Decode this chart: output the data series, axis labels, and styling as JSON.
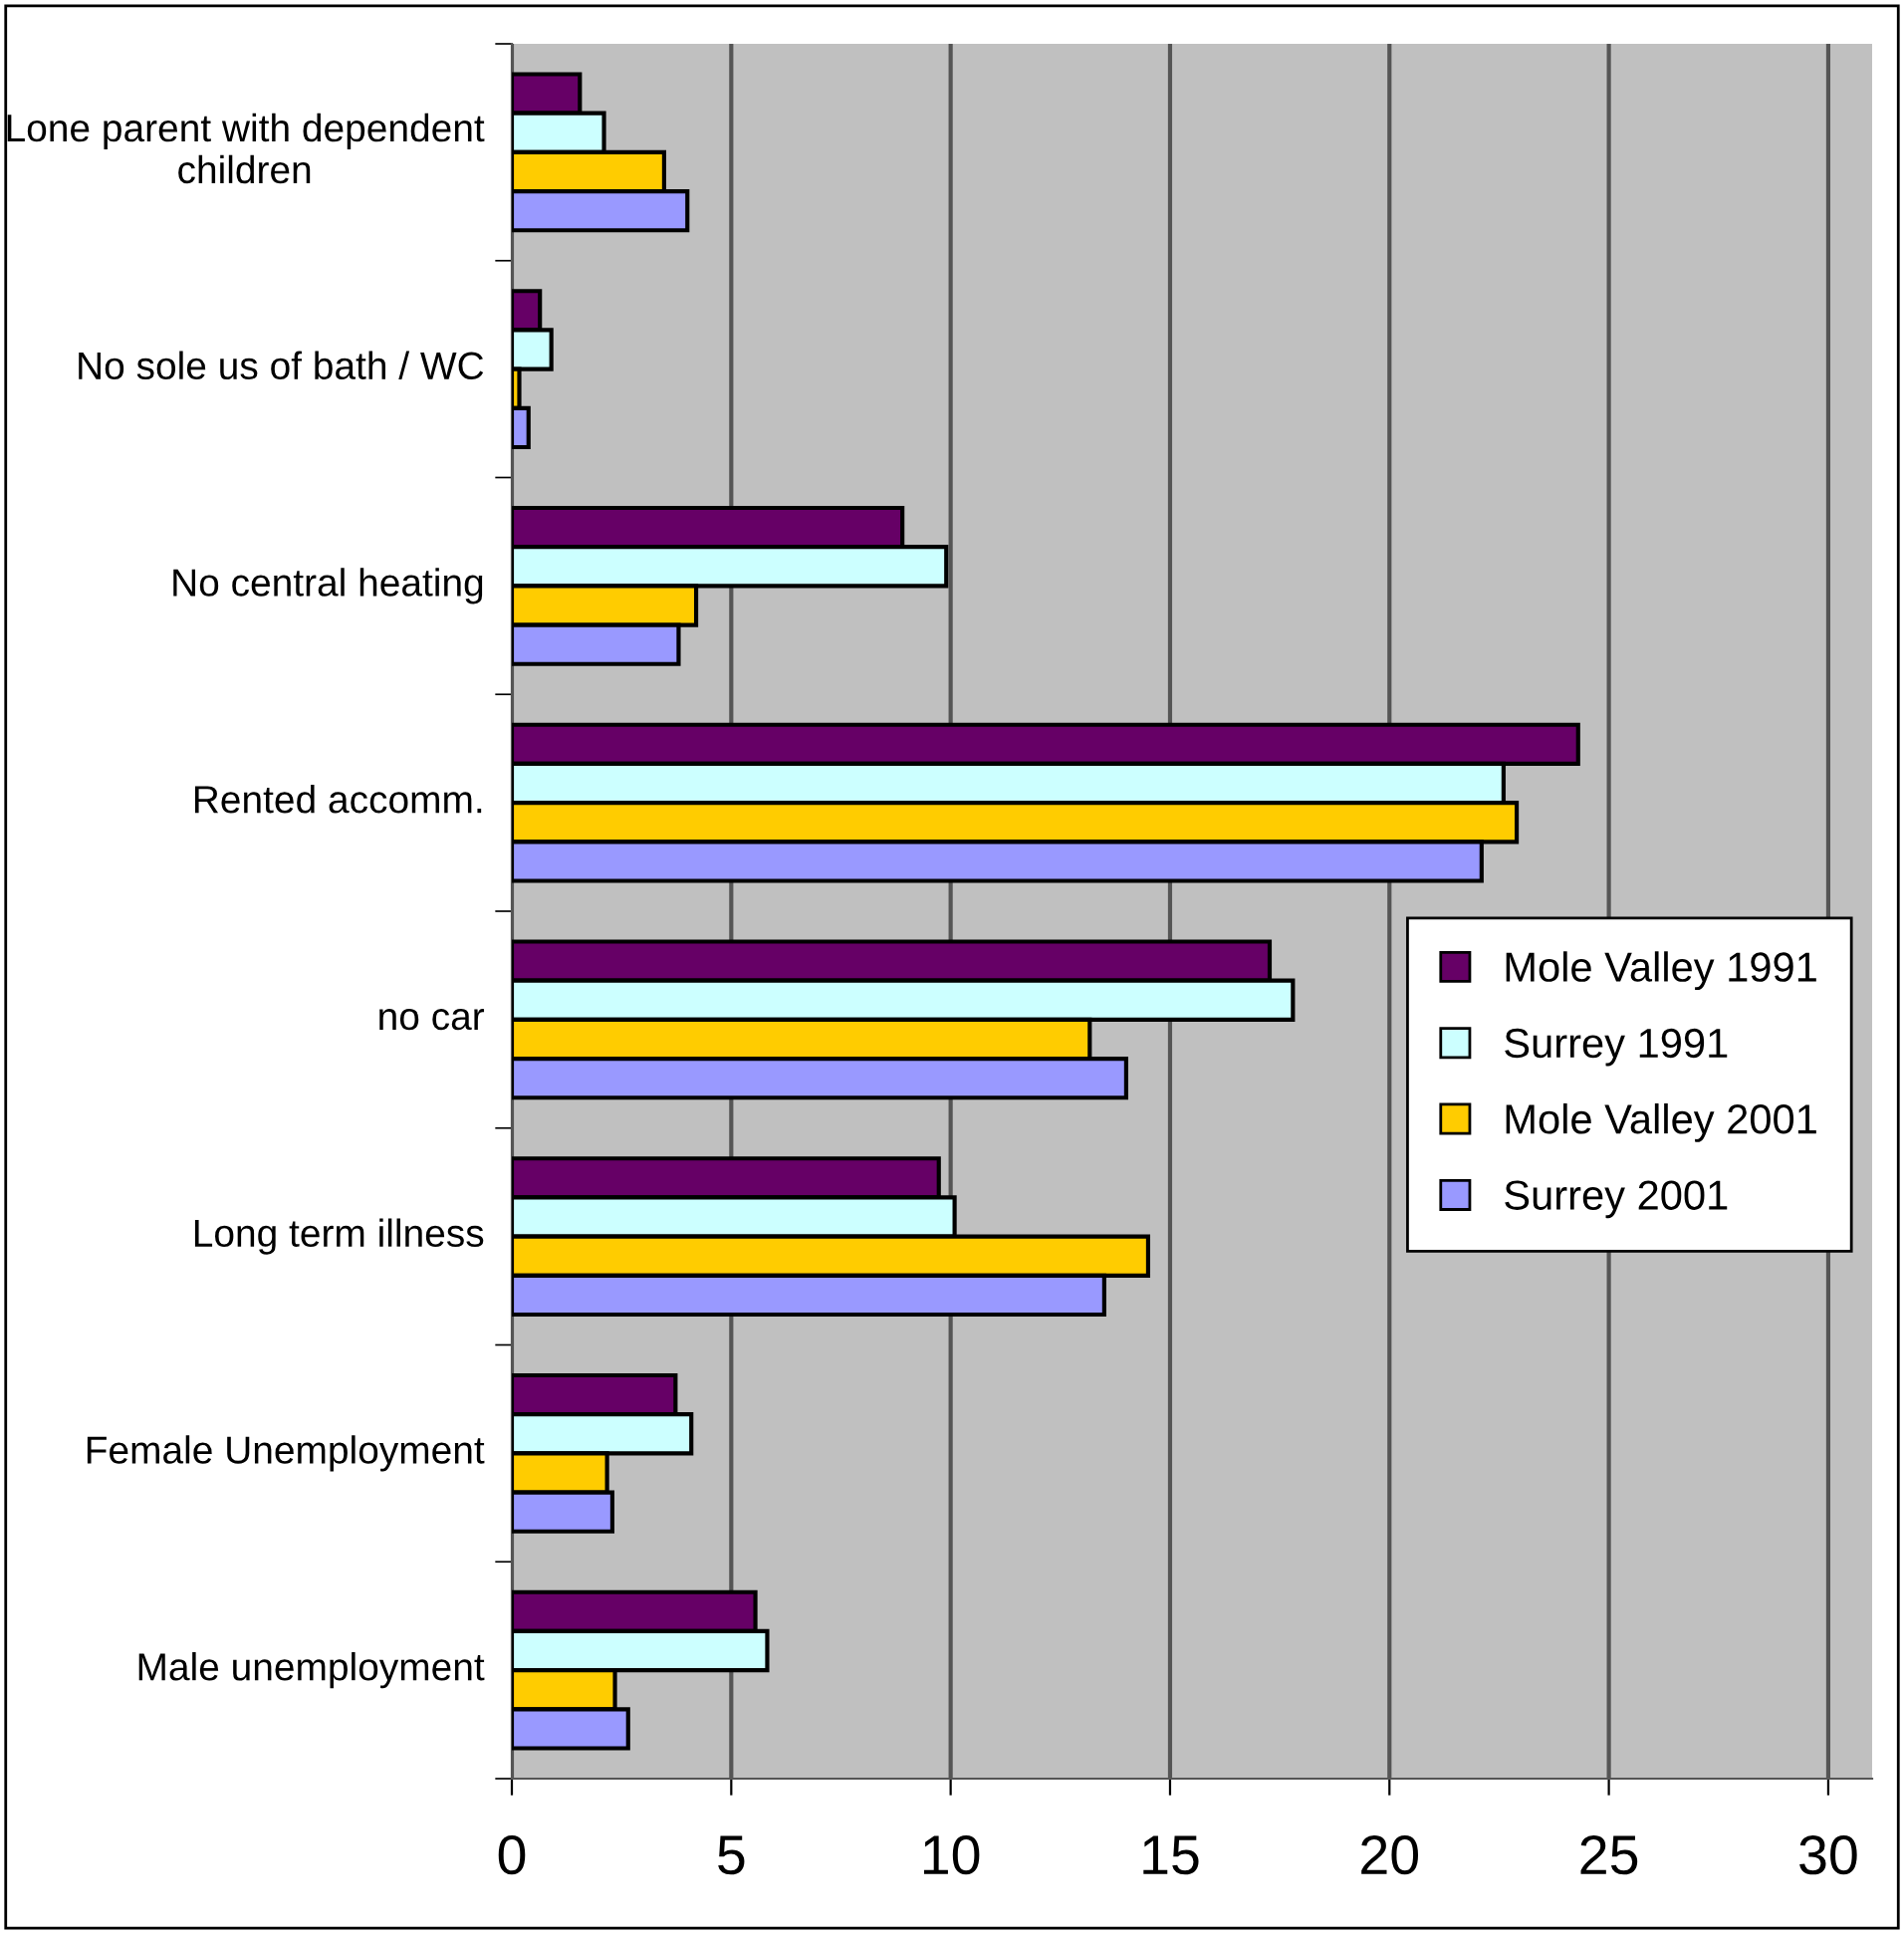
{
  "chart_data": {
    "type": "bar",
    "orientation": "horizontal",
    "categories": [
      "Lone parent with dependent children",
      "No sole us of bath / WC",
      "No central heating",
      "Rented accomm.",
      "no car",
      "Long term illness",
      "Female Unemployment",
      "Male unemployment"
    ],
    "series": [
      {
        "name": "Mole Valley 1991",
        "color": "#660066",
        "values": [
          1.55,
          0.64,
          8.9,
          24.3,
          17.27,
          9.73,
          3.73,
          5.55
        ]
      },
      {
        "name": "Surrey 1991",
        "color": "#ccffff",
        "values": [
          2.1,
          0.9,
          9.9,
          22.6,
          17.8,
          10.09,
          4.09,
          5.82
        ]
      },
      {
        "name": "Mole Valley 2001",
        "color": "#ffcc00",
        "values": [
          3.47,
          0.17,
          4.2,
          22.9,
          13.17,
          14.5,
          2.17,
          2.35
        ]
      },
      {
        "name": "Surrey 2001",
        "color": "#9999ff",
        "values": [
          4.0,
          0.38,
          3.8,
          22.1,
          14.0,
          13.5,
          2.29,
          2.65
        ]
      }
    ],
    "xlim": [
      0,
      31
    ],
    "xticks": [
      0,
      5,
      10,
      15,
      20,
      25,
      30
    ],
    "grid": "x",
    "legend": "right"
  }
}
